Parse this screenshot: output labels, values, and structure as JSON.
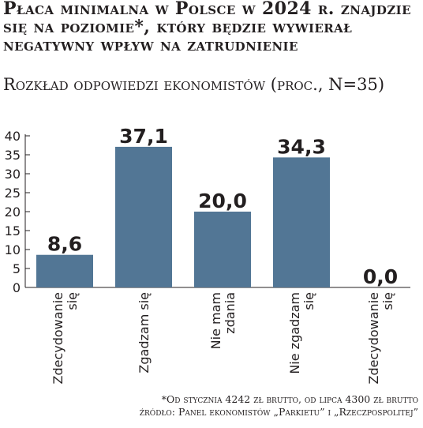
{
  "title": "Płaca minimalna w Polsce w 2024 r. znajdzie się na poziomie*, który będzie wywierał negatywny wpływ na zatrudnienie",
  "subtitle": "Rozkład odpowiedzi ekonomistów (proc., N=35)",
  "footnote": {
    "note": "*Od stycznia 4242 zł brutto, od lipca 4300 zł brutto",
    "source": "źródło: Panel ekonomistów „Parkietu” i „Rzeczpospolitej”"
  },
  "colors": {
    "bar": "#527695",
    "text": "#231f20",
    "grid": "#231f20"
  },
  "chart_data": {
    "type": "bar",
    "categories": [
      [
        "Zdecydowanie",
        "się"
      ],
      [
        "Zgadzam się"
      ],
      [
        "Nie mam",
        "zdania"
      ],
      [
        "Nie zgadzam",
        "się"
      ],
      [
        "Zdecydowanie",
        "się"
      ]
    ],
    "values": [
      8.6,
      37.1,
      20.0,
      34.3,
      0.0
    ],
    "value_labels": [
      "8,6",
      "37,1",
      "20,0",
      "34,3",
      "0,0"
    ],
    "yticks": [
      0,
      5,
      10,
      15,
      20,
      25,
      30,
      35,
      40
    ],
    "ylim": [
      0,
      40
    ],
    "grid": false,
    "xlabel": "",
    "ylabel": ""
  }
}
